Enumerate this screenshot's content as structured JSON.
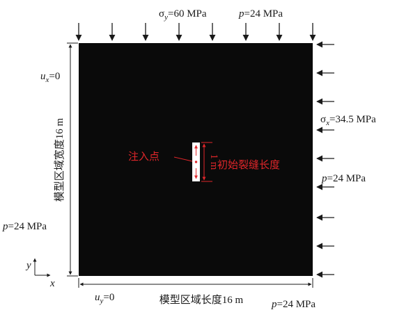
{
  "loads": {
    "sigma_y": {
      "symbol": "σ",
      "sub": "y",
      "value": "=60 MPa"
    },
    "p_top": {
      "symbol": "p",
      "value": "=24 MPa"
    },
    "sigma_x": {
      "symbol": "σ",
      "sub": "x",
      "value": "=34.5 MPa"
    },
    "p_right": {
      "symbol": "p",
      "value": "=24 MPa"
    },
    "p_left": {
      "symbol": "p",
      "value": "=24 MPa"
    },
    "p_bottom": {
      "symbol": "p",
      "value": "=24 MPa"
    }
  },
  "boundary": {
    "ux": {
      "symbol": "u",
      "sub": "x",
      "value": "=0"
    },
    "uy": {
      "symbol": "u",
      "sub": "y",
      "value": "=0"
    }
  },
  "dimensions": {
    "width_label": "模型区域宽度16 m",
    "length_label": "模型区域长度16 m"
  },
  "crack": {
    "injection_label": "注入点",
    "length_label": "初始裂缝长度",
    "scale_label": "1 m"
  },
  "axes": {
    "x": "x",
    "y": "y"
  },
  "colors": {
    "model": "#0a0a0a",
    "annotation": "#e0262a",
    "ink": "#1a1a1a"
  }
}
